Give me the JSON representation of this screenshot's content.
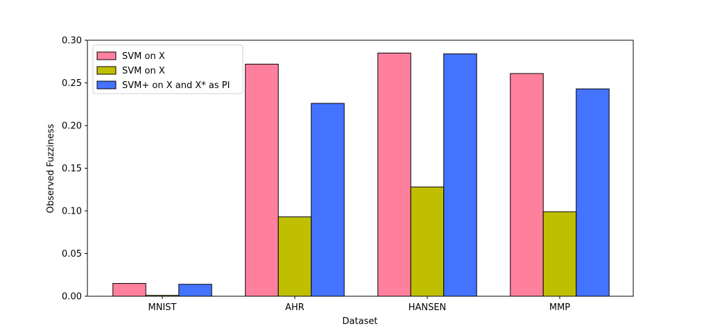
{
  "chart_data": {
    "type": "bar",
    "title": "",
    "xlabel": "Dataset",
    "ylabel": "Observed Fuzziness",
    "categories": [
      "MNIST",
      "AHR",
      "HANSEN",
      "MMP"
    ],
    "ylim": [
      0,
      0.3
    ],
    "yticks": [
      "0.00",
      "0.05",
      "0.10",
      "0.15",
      "0.20",
      "0.25",
      "0.30"
    ],
    "grid": false,
    "legend_position": "top-left",
    "series": [
      {
        "name": "SVM on X",
        "color": "#ff809c",
        "values": [
          0.015,
          0.272,
          0.285,
          0.261
        ]
      },
      {
        "name": "SVM on X",
        "color": "#bfbf00",
        "values": [
          0.001,
          0.093,
          0.128,
          0.099
        ]
      },
      {
        "name": "SVM+ on X and X* as PI",
        "color": "#4373ff",
        "values": [
          0.014,
          0.226,
          0.284,
          0.243
        ]
      }
    ]
  }
}
